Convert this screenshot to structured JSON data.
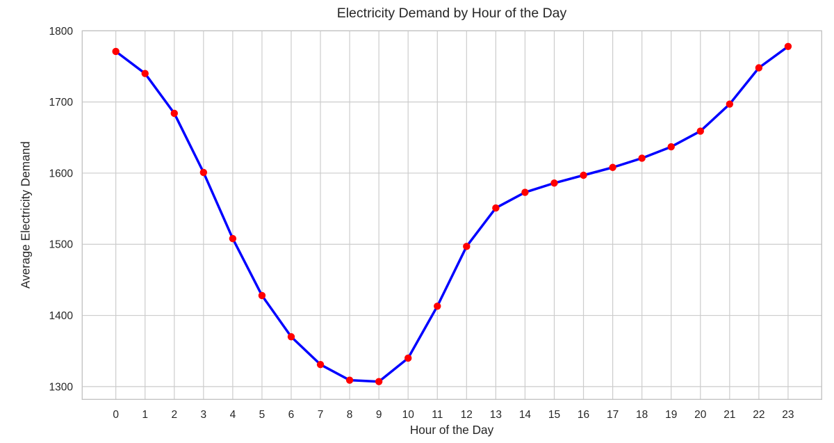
{
  "figure": {
    "title": "Electricity Demand by Hour of the Day",
    "xlabel": "Hour of the Day",
    "ylabel": "Average Electricity Demand"
  },
  "chart_data": {
    "type": "line",
    "title": "Electricity Demand by Hour of the Day",
    "xlabel": "Hour of the Day",
    "ylabel": "Average Electricity Demand",
    "x": [
      0,
      1,
      2,
      3,
      4,
      5,
      6,
      7,
      8,
      9,
      10,
      11,
      12,
      13,
      14,
      15,
      16,
      17,
      18,
      19,
      20,
      21,
      22,
      23
    ],
    "y": [
      1771,
      1740,
      1684,
      1601,
      1508,
      1428,
      1370,
      1331,
      1309,
      1307,
      1340,
      1413,
      1497,
      1551,
      1573,
      1586,
      1597,
      1608,
      1621,
      1637,
      1659,
      1697,
      1748,
      1778
    ],
    "x_tick_labels": [
      "0",
      "1",
      "2",
      "3",
      "4",
      "5",
      "6",
      "7",
      "8",
      "9",
      "10",
      "11",
      "12",
      "13",
      "14",
      "15",
      "16",
      "17",
      "18",
      "19",
      "20",
      "21",
      "22",
      "23"
    ],
    "y_ticks": [
      1300,
      1400,
      1500,
      1600,
      1700,
      1800
    ],
    "y_tick_labels": [
      "1300",
      "1400",
      "1500",
      "1600",
      "1700",
      "1800"
    ],
    "xlim": [
      -1.15,
      24.15
    ],
    "ylim": [
      1282,
      1800
    ],
    "grid": true,
    "legend": false,
    "colors": {
      "line": "#0000ff",
      "marker": "#ff0000",
      "grid": "#cccccc",
      "frame": "#c4c4c4",
      "text": "#262626",
      "background": "#ffffff"
    }
  }
}
